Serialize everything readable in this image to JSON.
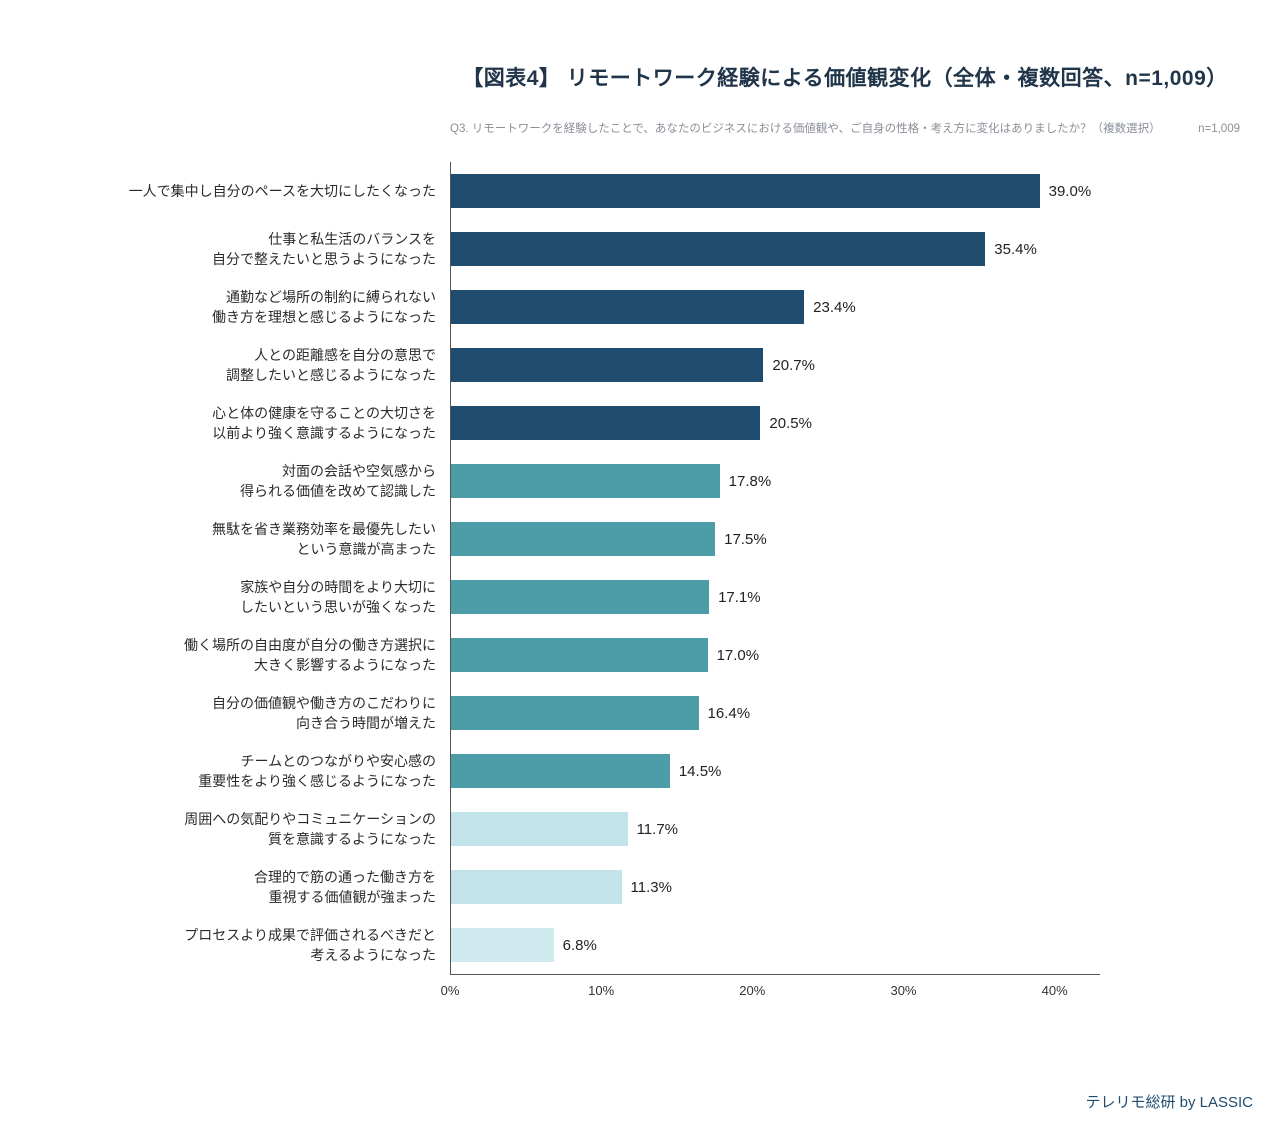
{
  "header": {
    "title": "【図表4】 リモートワーク経験による価値観変化（全体・複数回答、n=1,009）",
    "subtitle": "Q3. リモートワークを経験したことで、あなたのビジネスにおける価値観や、ご自身の性格・考え方に変化はありましたか？（複数選択）",
    "sample_note": "n=1,009"
  },
  "footer": {
    "credit": "テレリモ総研 by LASSIC"
  },
  "chart_data": {
    "type": "bar",
    "orientation": "horizontal",
    "title": "【図表4】 リモートワーク経験による価値観変化（全体・複数回答、n=1,009）",
    "xlabel": "",
    "ylabel": "",
    "xlim": [
      0,
      43
    ],
    "x_ticks": [
      "0%",
      "10%",
      "20%",
      "30%",
      "40%"
    ],
    "x_tick_values": [
      0,
      10,
      20,
      30,
      40
    ],
    "grid": false,
    "legend": "none",
    "categories": [
      "一人で集中し自分のペースを大切にしたくなった",
      "仕事と私生活のバランスを\n自分で整えたいと思うようになった",
      "通勤など場所の制約に縛られない\n働き方を理想と感じるようになった",
      "人との距離感を自分の意思で\n調整したいと感じるようになった",
      "心と体の健康を守ることの大切さを\n以前より強く意識するようになった",
      "対面の会話や空気感から\n得られる価値を改めて認識した",
      "無駄を省き業務効率を最優先したい\nという意識が高まった",
      "家族や自分の時間をより大切に\nしたいという思いが強くなった",
      "働く場所の自由度が自分の働き方選択に\n大きく影響するようになった",
      "自分の価値観や働き方のこだわりに\n向き合う時間が増えた",
      "チームとのつながりや安心感の\n重要性をより強く感じるようになった",
      "周囲への気配りやコミュニケーションの\n質を意識するようになった",
      "合理的で筋の通った働き方を\n重視する価値観が強まった",
      "プロセスより成果で評価されるべきだと\n考えるようになった"
    ],
    "values": [
      39.0,
      35.4,
      23.4,
      20.7,
      20.5,
      17.8,
      17.5,
      17.1,
      17.0,
      16.4,
      14.5,
      11.7,
      11.3,
      6.8
    ],
    "value_labels": [
      "39.0%",
      "35.4%",
      "23.4%",
      "20.7%",
      "20.5%",
      "17.8%",
      "17.5%",
      "17.1%",
      "17.0%",
      "16.4%",
      "14.5%",
      "11.7%",
      "11.3%",
      "6.8%"
    ],
    "bar_colors": [
      "#1F4B6E",
      "#1F4B6E",
      "#1F4B6E",
      "#1F4B6E",
      "#1F4B6E",
      "#4D9DA8",
      "#4D9DA8",
      "#4D9DA8",
      "#4D9DA8",
      "#4D9DA8",
      "#4D9DA8",
      "#C3E3EA",
      "#C3E3EA",
      "#CEEAEF"
    ],
    "colors": {
      "dark_navy": "#1F4B6E",
      "teal": "#4D9DA8",
      "light_cyan": "#C3E3EA",
      "lightest_cyan": "#CEEAEF",
      "axis": "#555555",
      "title_text": "#20354A",
      "subtitle_text": "#8A8F98",
      "footer_text": "#1F4B6E"
    }
  }
}
